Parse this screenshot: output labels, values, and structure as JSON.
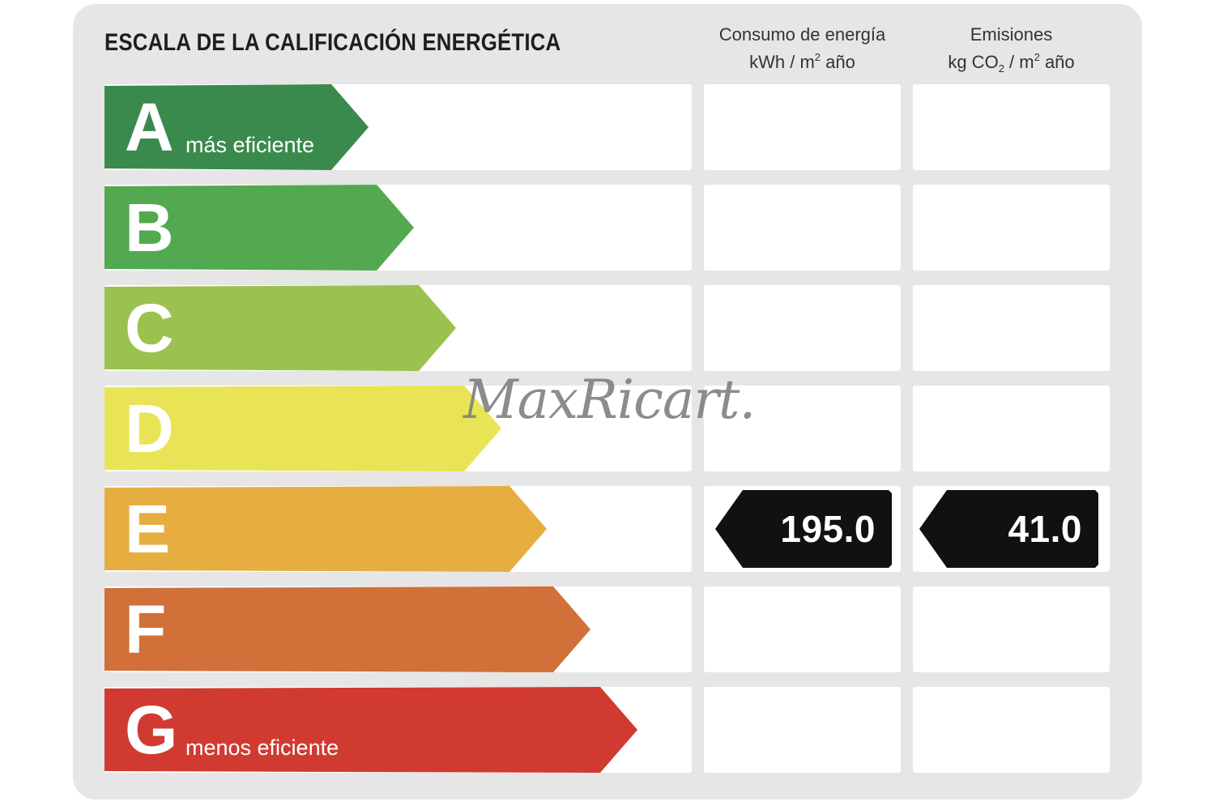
{
  "title": "ESCALA DE LA CALIFICACIÓN ENERGÉTICA",
  "columns": {
    "energy": {
      "line1": "Consumo de energía",
      "unit_pre": "kWh / m",
      "unit_sup": "2",
      "unit_post": " año"
    },
    "emissions": {
      "line1": "Emisiones",
      "unit_pre": "kg CO",
      "unit_sub": "2",
      "unit_mid": " / m",
      "unit_sup": "2",
      "unit_post": " año"
    }
  },
  "ratings": [
    {
      "letter": "A",
      "label": "más eficiente",
      "color": "#3a8a4d"
    },
    {
      "letter": "B",
      "label": "",
      "color": "#52a94f"
    },
    {
      "letter": "C",
      "label": "",
      "color": "#9bc24e"
    },
    {
      "letter": "D",
      "label": "",
      "color": "#e8e456"
    },
    {
      "letter": "E",
      "label": "",
      "color": "#e6ae41"
    },
    {
      "letter": "F",
      "label": "",
      "color": "#d17038"
    },
    {
      "letter": "G",
      "label": "menos eficiente",
      "color": "#d13a30"
    }
  ],
  "current": {
    "rating": "E",
    "energy_value": "195.0",
    "emissions_value": "41.0",
    "badge_color": "#111111"
  },
  "watermark": "MaxRicart."
}
